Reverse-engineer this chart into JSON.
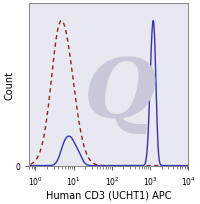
{
  "title": "",
  "xlabel": "Human CD3 (UCHT1) APC",
  "ylabel": "Count",
  "xlim": [
    0.7,
    10000
  ],
  "ylim": [
    0,
    1.12
  ],
  "background_color": "#ffffff",
  "plot_bg_color": "#e8e8f0",
  "solid_color": "#3333bb",
  "dashed_color": "#8b2222",
  "watermark_color": "#c8c8d8",
  "xlabel_fontsize": 7.0,
  "ylabel_fontsize": 7.0,
  "tick_fontsize": 5.5
}
